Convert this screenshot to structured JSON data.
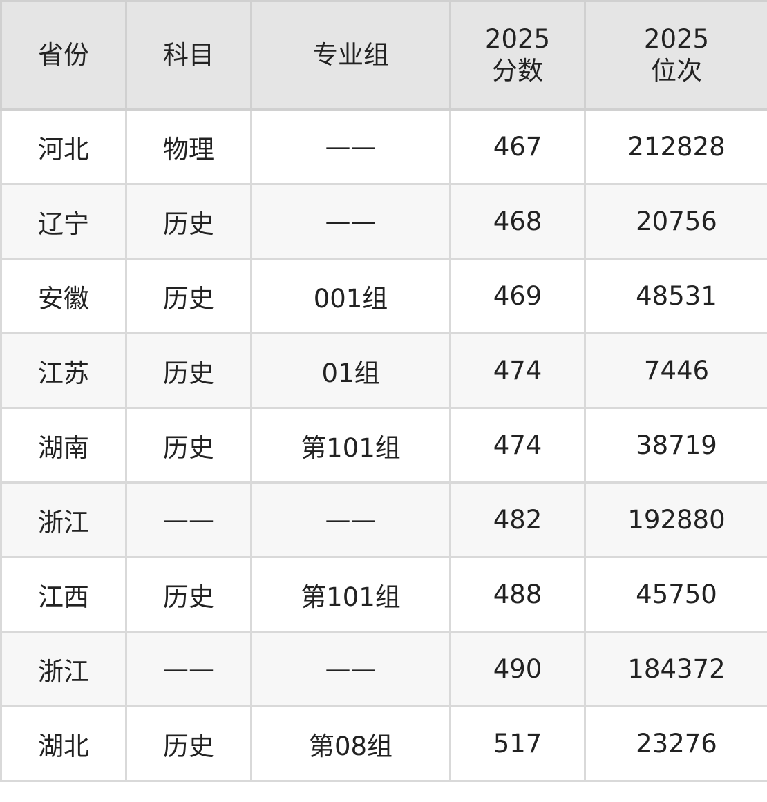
{
  "table": {
    "headers": [
      {
        "lines": [
          "省份"
        ]
      },
      {
        "lines": [
          "科目"
        ]
      },
      {
        "lines": [
          "专业组"
        ]
      },
      {
        "lines": [
          "2025",
          "分数"
        ]
      },
      {
        "lines": [
          "2025",
          "位次"
        ]
      }
    ],
    "rows": [
      [
        "河北",
        "物理",
        "——",
        "467",
        "212828"
      ],
      [
        "辽宁",
        "历史",
        "——",
        "468",
        "20756"
      ],
      [
        "安徽",
        "历史",
        "001组",
        "469",
        "48531"
      ],
      [
        "江苏",
        "历史",
        "01组",
        "474",
        "7446"
      ],
      [
        "湖南",
        "历史",
        "第101组",
        "474",
        "38719"
      ],
      [
        "浙江",
        "——",
        "——",
        "482",
        "192880"
      ],
      [
        "江西",
        "历史",
        "第101组",
        "488",
        "45750"
      ],
      [
        "浙江",
        "——",
        "——",
        "490",
        "184372"
      ],
      [
        "湖北",
        "历史",
        "第08组",
        "517",
        "23276"
      ]
    ]
  }
}
